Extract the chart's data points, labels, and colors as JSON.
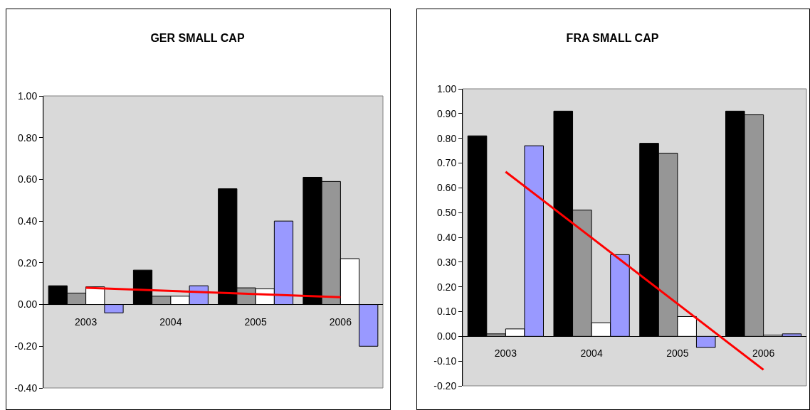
{
  "chart_data": [
    {
      "type": "bar",
      "title": "GER SMALL CAP",
      "categories": [
        "2003",
        "2004",
        "2005",
        "2006"
      ],
      "ylim": [
        -0.4,
        1.0
      ],
      "yticks": [
        {
          "value": -0.4,
          "label": "-0.40"
        },
        {
          "value": -0.2,
          "label": "-0.20"
        },
        {
          "value": 0,
          "label": "0.00"
        },
        {
          "value": 0.2,
          "label": "0.20"
        },
        {
          "value": 0.4,
          "label": "0.40"
        },
        {
          "value": 0.6,
          "label": "0.60"
        },
        {
          "value": 0.8,
          "label": "0.80"
        },
        {
          "value": 1.0,
          "label": "1.00"
        }
      ],
      "grid": false,
      "series": [
        {
          "color": "#000000",
          "values": [
            0.09,
            0.165,
            0.555,
            0.61
          ]
        },
        {
          "color": "#969696",
          "values": [
            0.055,
            0.04,
            0.08,
            0.59
          ]
        },
        {
          "color": "#ffffff",
          "values": [
            0.085,
            0.04,
            0.075,
            0.22
          ]
        },
        {
          "color": "#9999ff",
          "values": [
            -0.04,
            0.09,
            0.4,
            -0.2
          ]
        },
        {
          "type": "line",
          "color": "#ff0000",
          "values": [
            0.08,
            null,
            null,
            0.035
          ]
        }
      ]
    },
    {
      "type": "bar",
      "title": "FRA SMALL CAP",
      "categories": [
        "2003",
        "2004",
        "2005",
        "2006"
      ],
      "ylim": [
        -0.2,
        1.0
      ],
      "yticks": [
        {
          "value": -0.2,
          "label": "-0.20"
        },
        {
          "value": -0.1,
          "label": "-0.10"
        },
        {
          "value": 0,
          "label": "0.00"
        },
        {
          "value": 0.1,
          "label": "0.10"
        },
        {
          "value": 0.2,
          "label": "0.20"
        },
        {
          "value": 0.3,
          "label": "0.30"
        },
        {
          "value": 0.4,
          "label": "0.40"
        },
        {
          "value": 0.5,
          "label": "0.50"
        },
        {
          "value": 0.6,
          "label": "0.60"
        },
        {
          "value": 0.7,
          "label": "0.70"
        },
        {
          "value": 0.8,
          "label": "0.80"
        },
        {
          "value": 0.9,
          "label": "0.90"
        },
        {
          "value": 1.0,
          "label": "1.00"
        }
      ],
      "grid": false,
      "series": [
        {
          "color": "#000000",
          "values": [
            0.81,
            0.91,
            0.78,
            0.91
          ]
        },
        {
          "color": "#969696",
          "values": [
            0.01,
            0.51,
            0.74,
            0.895
          ]
        },
        {
          "color": "#ffffff",
          "values": [
            0.03,
            0.055,
            0.08,
            0.005
          ]
        },
        {
          "color": "#9999ff",
          "values": [
            0.77,
            0.33,
            -0.045,
            0.01
          ]
        },
        {
          "type": "line",
          "color": "#ff0000",
          "values": [
            0.665,
            null,
            null,
            -0.135
          ]
        }
      ]
    }
  ]
}
